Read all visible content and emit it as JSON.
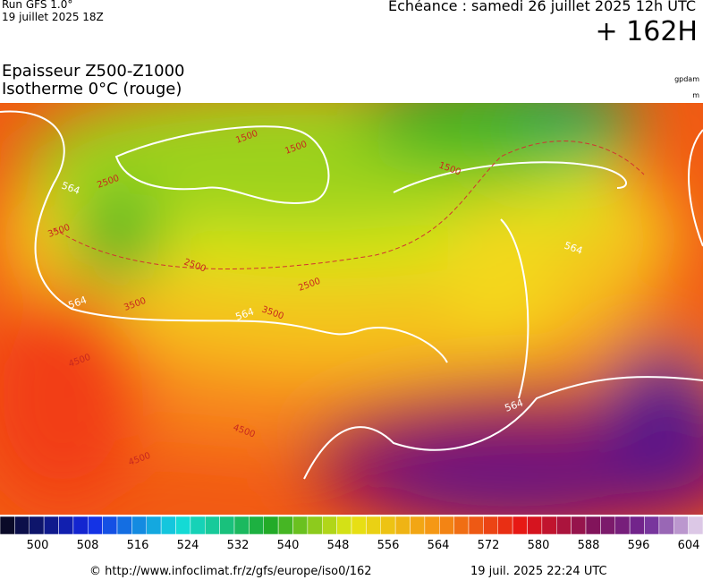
{
  "header": {
    "run": "Run GFS 1.0°",
    "run_date": "19 juillet 2025 18Z",
    "valid": "Echéance : samedi 26 juillet 2025 12h UTC",
    "lead": "+ 162H",
    "title_line1": "Epaisseur Z500-Z1000",
    "title_line2": "Isotherme 0°C (rouge)",
    "unit1": "gpdam",
    "unit2": "m"
  },
  "map": {
    "contour_labels": [
      "564",
      "564",
      "564",
      "564",
      "564",
      "2500",
      "2500",
      "2500",
      "3500",
      "3500",
      "3500",
      "1500",
      "1500",
      "1500",
      "4500",
      "4500",
      "4500"
    ]
  },
  "colorbar": {
    "labels": [
      500,
      508,
      516,
      524,
      532,
      540,
      548,
      556,
      564,
      572,
      580,
      588,
      596,
      604
    ]
  },
  "footer": {
    "source": "© http://www.infoclimat.fr/z/gfs/europe/iso0/162",
    "generated": "19 juil. 2025 22:24 UTC"
  }
}
